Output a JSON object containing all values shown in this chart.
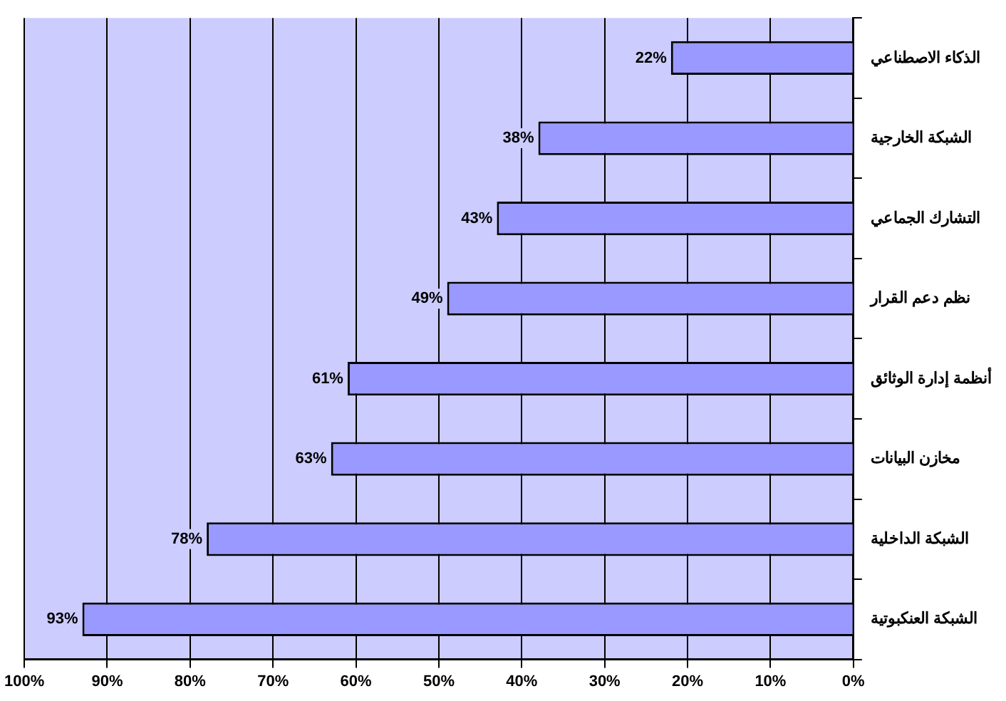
{
  "chart_data": {
    "type": "bar",
    "orientation": "horizontal",
    "categories": [
      "الذكاء الاصطناعي",
      "الشبكة الخارجية",
      "التشارك الجماعي",
      "نظم دعم القرار",
      "أنظمة إدارة الوثائق",
      "مخازن البيانات",
      "الشبكة الداخلية",
      "الشبكة العنكبوتية"
    ],
    "values": [
      22,
      38,
      43,
      49,
      61,
      63,
      78,
      93
    ],
    "value_labels": [
      "22%",
      "38%",
      "43%",
      "49%",
      "61%",
      "63%",
      "78%",
      "93%"
    ],
    "color": "#9999ff",
    "xlim": [
      100,
      0
    ],
    "xticks": [
      {
        "value": 100,
        "label": "100%"
      },
      {
        "value": 90,
        "label": "90%"
      },
      {
        "value": 80,
        "label": "80%"
      },
      {
        "value": 70,
        "label": "70%"
      },
      {
        "value": 60,
        "label": "60%"
      },
      {
        "value": 50,
        "label": "50%"
      },
      {
        "value": 40,
        "label": "40%"
      },
      {
        "value": 30,
        "label": "30%"
      },
      {
        "value": 20,
        "label": "20%"
      },
      {
        "value": 10,
        "label": "10%"
      },
      {
        "value": 0,
        "label": "0%"
      }
    ],
    "grid": "x"
  }
}
